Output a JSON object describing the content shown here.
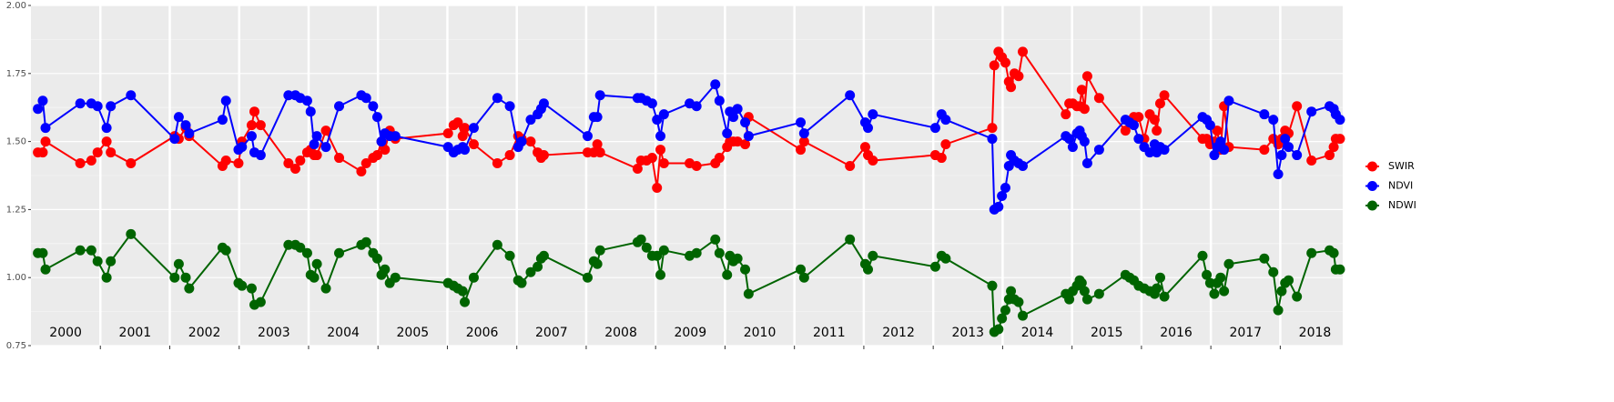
{
  "chart_data": {
    "type": "line",
    "x": [
      2000.1,
      2000.17,
      2000.21,
      2000.71,
      2000.87,
      2000.96,
      2001.09,
      2001.15,
      2001.44,
      2002.07,
      2002.13,
      2002.23,
      2002.28,
      2002.76,
      2002.81,
      2002.99,
      2003.04,
      2003.18,
      2003.22,
      2003.31,
      2003.71,
      2003.81,
      2003.88,
      2003.98,
      2004.03,
      2004.08,
      2004.12,
      2004.25,
      2004.44,
      2004.76,
      2004.83,
      2004.93,
      2004.99,
      2005.05,
      2005.1,
      2005.17,
      2005.25,
      2006.01,
      2006.09,
      2006.15,
      2006.22,
      2006.25,
      2006.38,
      2006.72,
      2006.9,
      2007.02,
      2007.07,
      2007.2,
      2007.3,
      2007.35,
      2007.39,
      2008.02,
      2008.11,
      2008.16,
      2008.2,
      2008.74,
      2008.79,
      2008.87,
      2008.95,
      2009.02,
      2009.07,
      2009.12,
      2009.49,
      2009.59,
      2009.86,
      2009.92,
      2010.03,
      2010.07,
      2010.12,
      2010.18,
      2010.29,
      2010.34,
      2011.09,
      2011.14,
      2011.8,
      2012.02,
      2012.06,
      2012.13,
      2013.03,
      2013.12,
      2013.18,
      2013.85,
      2013.88,
      2013.94,
      2013.99,
      2014.04,
      2014.09,
      2014.12,
      2014.17,
      2014.23,
      2014.29,
      2014.91,
      2014.96,
      2015.01,
      2015.07,
      2015.11,
      2015.14,
      2015.18,
      2015.22,
      2015.39,
      2015.77,
      2015.83,
      2015.89,
      2015.96,
      2016.04,
      2016.12,
      2016.19,
      2016.22,
      2016.27,
      2016.33,
      2016.88,
      2016.94,
      2016.99,
      2017.05,
      2017.09,
      2017.14,
      2017.19,
      2017.26,
      2017.77,
      2017.9,
      2017.97,
      2018.02,
      2018.07,
      2018.12,
      2018.24,
      2018.45,
      2018.71,
      2018.77,
      2018.8,
      2018.86
    ],
    "series": [
      {
        "name": "SWIR",
        "color": "#ff0000",
        "values": [
          1.46,
          1.46,
          1.5,
          1.42,
          1.43,
          1.46,
          1.5,
          1.46,
          1.42,
          1.52,
          1.51,
          1.55,
          1.52,
          1.41,
          1.43,
          1.42,
          1.5,
          1.56,
          1.61,
          1.56,
          1.42,
          1.4,
          1.43,
          1.46,
          1.47,
          1.45,
          1.45,
          1.54,
          1.44,
          1.39,
          1.42,
          1.44,
          1.45,
          1.5,
          1.47,
          1.54,
          1.51,
          1.53,
          1.56,
          1.57,
          1.52,
          1.55,
          1.49,
          1.42,
          1.45,
          1.52,
          1.51,
          1.5,
          1.46,
          1.44,
          1.45,
          1.46,
          1.46,
          1.49,
          1.46,
          1.4,
          1.43,
          1.43,
          1.44,
          1.33,
          1.47,
          1.42,
          1.42,
          1.41,
          1.42,
          1.44,
          1.48,
          1.5,
          1.5,
          1.5,
          1.49,
          1.59,
          1.47,
          1.5,
          1.41,
          1.48,
          1.45,
          1.43,
          1.45,
          1.44,
          1.49,
          1.55,
          1.78,
          1.83,
          1.81,
          1.79,
          1.72,
          1.7,
          1.75,
          1.74,
          1.83,
          1.6,
          1.64,
          1.64,
          1.63,
          1.63,
          1.69,
          1.62,
          1.74,
          1.66,
          1.54,
          1.57,
          1.59,
          1.59,
          1.51,
          1.6,
          1.58,
          1.54,
          1.64,
          1.67,
          1.51,
          1.51,
          1.49,
          1.5,
          1.54,
          1.47,
          1.63,
          1.48,
          1.47,
          1.51,
          1.49,
          1.51,
          1.54,
          1.53,
          1.63,
          1.43,
          1.45,
          1.48,
          1.51,
          1.51
        ]
      },
      {
        "name": "NDVI",
        "color": "#0000ff",
        "values": [
          1.62,
          1.65,
          1.55,
          1.64,
          1.64,
          1.63,
          1.55,
          1.63,
          1.67,
          1.51,
          1.59,
          1.56,
          1.53,
          1.58,
          1.65,
          1.47,
          1.48,
          1.52,
          1.46,
          1.45,
          1.67,
          1.67,
          1.66,
          1.65,
          1.61,
          1.49,
          1.52,
          1.48,
          1.63,
          1.67,
          1.66,
          1.63,
          1.59,
          1.5,
          1.53,
          1.52,
          1.52,
          1.48,
          1.46,
          1.47,
          1.48,
          1.47,
          1.55,
          1.66,
          1.63,
          1.48,
          1.5,
          1.58,
          1.6,
          1.62,
          1.64,
          1.52,
          1.59,
          1.59,
          1.67,
          1.66,
          1.66,
          1.65,
          1.64,
          1.58,
          1.52,
          1.6,
          1.64,
          1.63,
          1.71,
          1.65,
          1.53,
          1.61,
          1.59,
          1.62,
          1.57,
          1.52,
          1.57,
          1.53,
          1.67,
          1.57,
          1.55,
          1.6,
          1.55,
          1.6,
          1.58,
          1.51,
          1.25,
          1.26,
          1.3,
          1.33,
          1.41,
          1.45,
          1.43,
          1.42,
          1.41,
          1.52,
          1.51,
          1.48,
          1.53,
          1.54,
          1.52,
          1.5,
          1.42,
          1.47,
          1.58,
          1.57,
          1.56,
          1.51,
          1.48,
          1.46,
          1.49,
          1.46,
          1.48,
          1.47,
          1.59,
          1.58,
          1.56,
          1.45,
          1.48,
          1.5,
          1.47,
          1.65,
          1.6,
          1.58,
          1.38,
          1.45,
          1.51,
          1.48,
          1.45,
          1.61,
          1.63,
          1.62,
          1.6,
          1.58
        ]
      },
      {
        "name": "NDWI",
        "color": "#006400",
        "values": [
          1.09,
          1.09,
          1.03,
          1.1,
          1.1,
          1.06,
          1.0,
          1.06,
          1.16,
          1.0,
          1.05,
          1.0,
          0.96,
          1.11,
          1.1,
          0.98,
          0.97,
          0.96,
          0.9,
          0.91,
          1.12,
          1.12,
          1.11,
          1.09,
          1.01,
          1.0,
          1.05,
          0.96,
          1.09,
          1.12,
          1.13,
          1.09,
          1.07,
          1.01,
          1.03,
          0.98,
          1.0,
          0.98,
          0.97,
          0.96,
          0.95,
          0.91,
          1.0,
          1.12,
          1.08,
          0.99,
          0.98,
          1.02,
          1.04,
          1.07,
          1.08,
          1.0,
          1.06,
          1.05,
          1.1,
          1.13,
          1.14,
          1.11,
          1.08,
          1.08,
          1.01,
          1.1,
          1.08,
          1.09,
          1.14,
          1.09,
          1.01,
          1.08,
          1.06,
          1.07,
          1.03,
          0.94,
          1.03,
          1.0,
          1.14,
          1.05,
          1.03,
          1.08,
          1.04,
          1.08,
          1.07,
          0.97,
          0.8,
          0.81,
          0.85,
          0.88,
          0.92,
          0.95,
          0.92,
          0.91,
          0.86,
          0.94,
          0.92,
          0.95,
          0.97,
          0.99,
          0.98,
          0.95,
          0.92,
          0.94,
          1.01,
          1.0,
          0.99,
          0.97,
          0.96,
          0.95,
          0.94,
          0.96,
          1.0,
          0.93,
          1.08,
          1.01,
          0.98,
          0.94,
          0.98,
          1.0,
          0.95,
          1.05,
          1.07,
          1.02,
          0.88,
          0.95,
          0.98,
          0.99,
          0.93,
          1.09,
          1.1,
          1.09,
          1.03,
          1.03
        ]
      }
    ],
    "annotations": [
      "2000",
      "2001",
      "2002",
      "2003",
      "2004",
      "2005",
      "2006",
      "2007",
      "2008",
      "2009",
      "2010",
      "2011",
      "2012",
      "2013",
      "2014",
      "2015",
      "2016",
      "2017",
      "2018"
    ],
    "xlim": [
      2000,
      2018.9
    ],
    "xticks": [
      2001,
      2002,
      2003,
      2004,
      2005,
      2006,
      2007,
      2008,
      2009,
      2010,
      2011,
      2012,
      2013,
      2014,
      2015,
      2016,
      2017,
      2018
    ],
    "ylim": [
      0.75,
      2.0
    ],
    "yticks": [
      {
        "value": 0.75,
        "label": "0.75"
      },
      {
        "value": 1.0,
        "label": "1.00"
      },
      {
        "value": 1.25,
        "label": "1.25"
      },
      {
        "value": 1.5,
        "label": "1.50"
      },
      {
        "value": 1.75,
        "label": "1.75"
      },
      {
        "value": 2.0,
        "label": "2.00"
      }
    ],
    "grid": true,
    "legend": "right"
  }
}
